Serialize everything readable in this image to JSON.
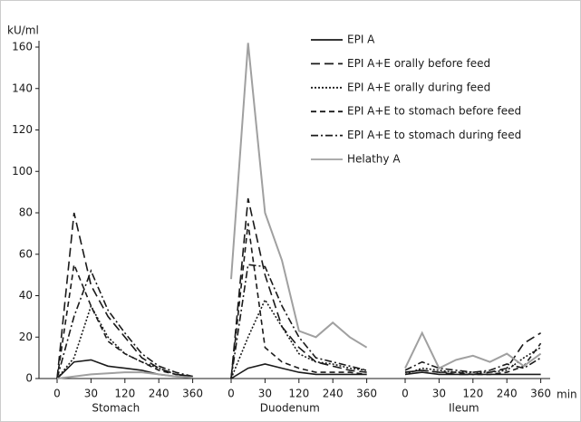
{
  "chart_data": {
    "type": "line",
    "ylabel": "kU/ml",
    "xlabel": "min",
    "panels": [
      "Stomach",
      "Duodenum",
      "Ileum"
    ],
    "categories": [
      0,
      null,
      30,
      null,
      120,
      null,
      240,
      null,
      360,
      0,
      null,
      30,
      null,
      120,
      null,
      240,
      null,
      360,
      0,
      null,
      30,
      null,
      120,
      null,
      240,
      null,
      360
    ],
    "ylim": [
      0,
      160
    ],
    "yticks": [
      0,
      20,
      40,
      60,
      80,
      100,
      120,
      140,
      160
    ],
    "series": [
      {
        "name": "EPI A",
        "color": "#1a1a1a",
        "dash": "none",
        "values": [
          0,
          8,
          9,
          6,
          5,
          4,
          2,
          1,
          0.5,
          0,
          5,
          7,
          5,
          3,
          2,
          2,
          2,
          2,
          2,
          3,
          2,
          2,
          2,
          2,
          2,
          2,
          2
        ]
      },
      {
        "name": "EPI A+E orally before feed",
        "color": "#1a1a1a",
        "dash": "10 5",
        "values": [
          0,
          80,
          45,
          30,
          20,
          10,
          5,
          2,
          1,
          0,
          87,
          50,
          25,
          15,
          8,
          6,
          4,
          3,
          3,
          4,
          3,
          2,
          2,
          3,
          5,
          17,
          22
        ]
      },
      {
        "name": "EPI A+E orally during feed",
        "color": "#1a1a1a",
        "dash": "2 2",
        "values": [
          0,
          10,
          35,
          20,
          12,
          8,
          5,
          2,
          1,
          0,
          20,
          38,
          25,
          12,
          8,
          7,
          5,
          4,
          2,
          5,
          4,
          3,
          3,
          3,
          4,
          10,
          15
        ]
      },
      {
        "name": "EPI A+E to stomach before feed",
        "color": "#1a1a1a",
        "dash": "6 4",
        "values": [
          0,
          55,
          35,
          18,
          12,
          8,
          4,
          2,
          1,
          0,
          75,
          15,
          8,
          5,
          3,
          3,
          3,
          2,
          3,
          4,
          3,
          3,
          2,
          2,
          3,
          6,
          17
        ]
      },
      {
        "name": "EPI A+E to stomach during feed",
        "color": "#1a1a1a",
        "dash": "8 3 2 3",
        "values": [
          0,
          30,
          52,
          33,
          22,
          12,
          6,
          3,
          1,
          0,
          55,
          54,
          35,
          20,
          10,
          8,
          6,
          4,
          4,
          8,
          5,
          4,
          3,
          4,
          7,
          5,
          10
        ]
      },
      {
        "name": "Helathy A",
        "color": "#a0a0a0",
        "dash": "none",
        "values": [
          0,
          1,
          2,
          2.5,
          3,
          3,
          2,
          1,
          0.5,
          48,
          162,
          80,
          57,
          23,
          20,
          27,
          20,
          15,
          5,
          22,
          5,
          9,
          11,
          8,
          12,
          6,
          12
        ]
      }
    ]
  }
}
